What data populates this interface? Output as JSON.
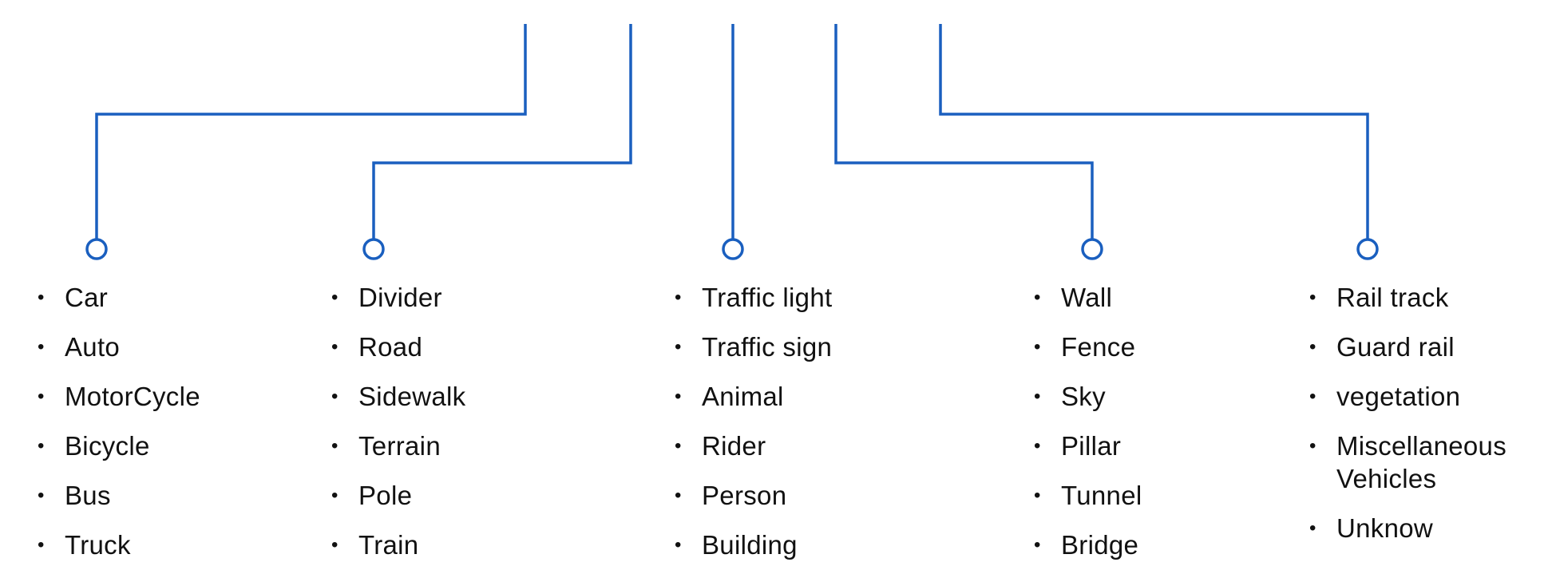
{
  "theme": {
    "connector_color": "#1a5fbf",
    "text_color": "#111111",
    "background": "#ffffff"
  },
  "columns": [
    {
      "items": [
        "Car",
        "Auto",
        "MotorCycle",
        "Bicycle",
        "Bus",
        "Truck"
      ]
    },
    {
      "items": [
        "Divider",
        "Road",
        "Sidewalk",
        "Terrain",
        "Pole",
        "Train"
      ]
    },
    {
      "items": [
        "Traffic light",
        "Traffic sign",
        "Animal",
        "Rider",
        "Person",
        "Building"
      ]
    },
    {
      "items": [
        "Wall",
        "Fence",
        "Sky",
        "Pillar",
        "Tunnel",
        "Bridge"
      ]
    },
    {
      "items": [
        "Rail track",
        "Guard rail",
        "vegetation",
        "Miscellaneous Vehicles",
        "Unknow"
      ]
    }
  ]
}
